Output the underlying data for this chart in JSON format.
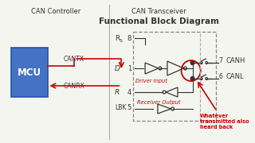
{
  "bg_color": "#f5f5f0",
  "title_transceiver": "CAN Transceiver",
  "title_block": "Functional Block Diagram",
  "title_controller": "CAN Controller",
  "mcu_color": "#4472c4",
  "mcu_label": "MCU",
  "cantx_label": "CANTX",
  "canrx_label": "CANRX",
  "canh_label": "CANH",
  "canl_label": "CANL",
  "pin_rs_main": "R",
  "pin_rs_sub": "S",
  "pin_d": "D",
  "pin_r": "R",
  "pin_lbk": "LBK",
  "pin_8": "8",
  "pin_1": "1",
  "pin_4": "4",
  "pin_5": "5",
  "pin_7": "7",
  "pin_6": "6",
  "red_color": "#cc0000",
  "black_color": "#333333",
  "note_line1": "Whatever",
  "note_line2": "transmitted also",
  "note_line3": "heard back",
  "driver_label": "Driver Input",
  "receiver_label": "Receiver Output"
}
